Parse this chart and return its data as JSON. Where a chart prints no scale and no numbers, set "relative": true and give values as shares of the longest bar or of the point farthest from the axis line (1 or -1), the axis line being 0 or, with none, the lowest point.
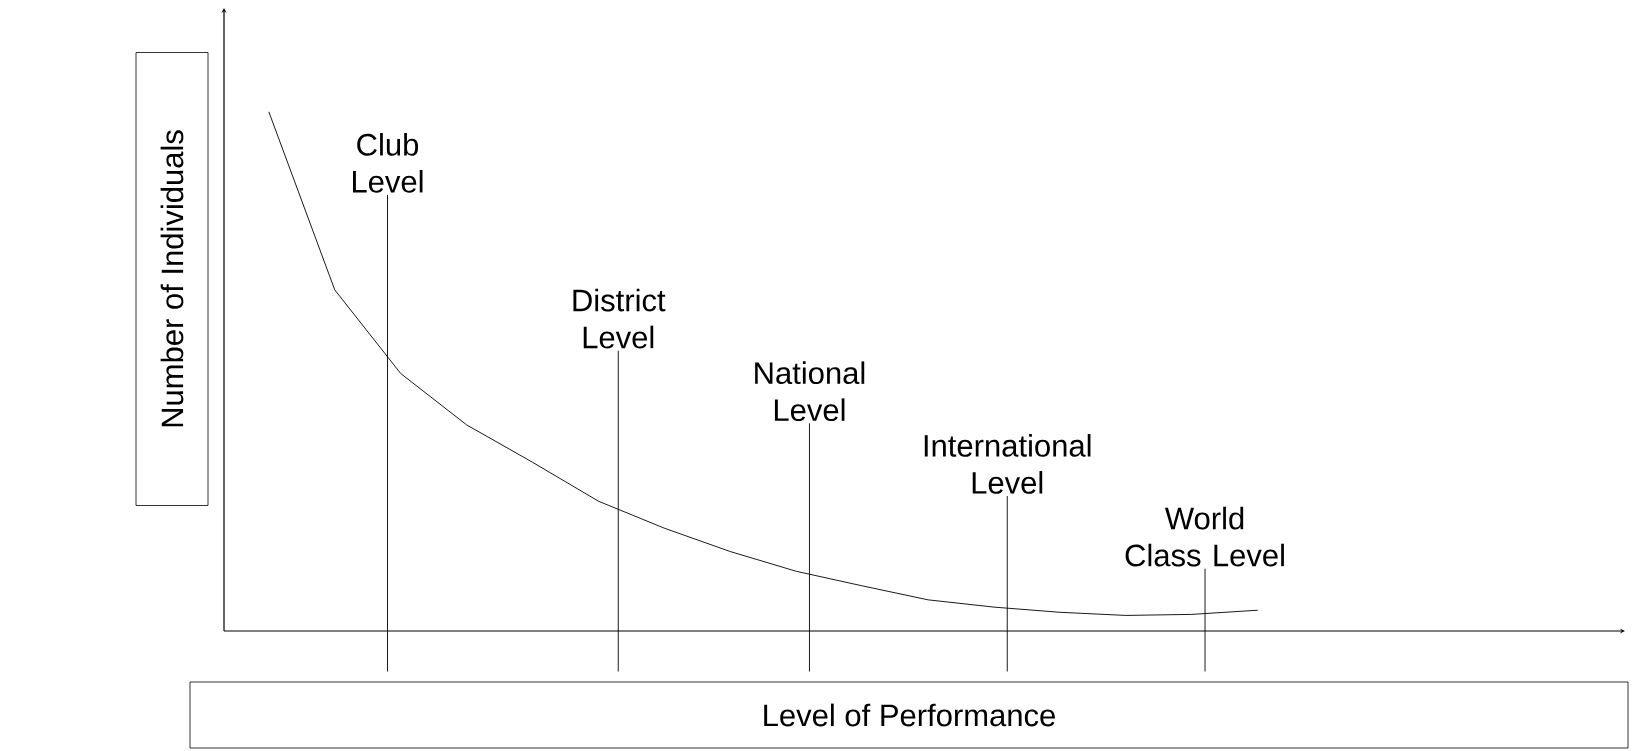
{
  "chart_data": {
    "type": "line",
    "relative": true,
    "xlabel": "Level of Performance",
    "ylabel": "Number of Individuals",
    "tick_labels": false,
    "categories": [
      null,
      null,
      null,
      null,
      null,
      null,
      null,
      null,
      null,
      null,
      null,
      null,
      null,
      null,
      null,
      null
    ],
    "color": "#000000",
    "values": [
      1,
      0.657,
      0.496,
      0.397,
      0.325,
      0.25,
      0.198,
      0.153,
      0.115,
      0.087,
      0.06,
      0.046,
      0.036,
      0.03,
      0.032,
      0.04
    ],
    "annotations": [
      "Club Level",
      "District Level",
      "National Level",
      "International Level",
      "World Class Level"
    ]
  }
}
